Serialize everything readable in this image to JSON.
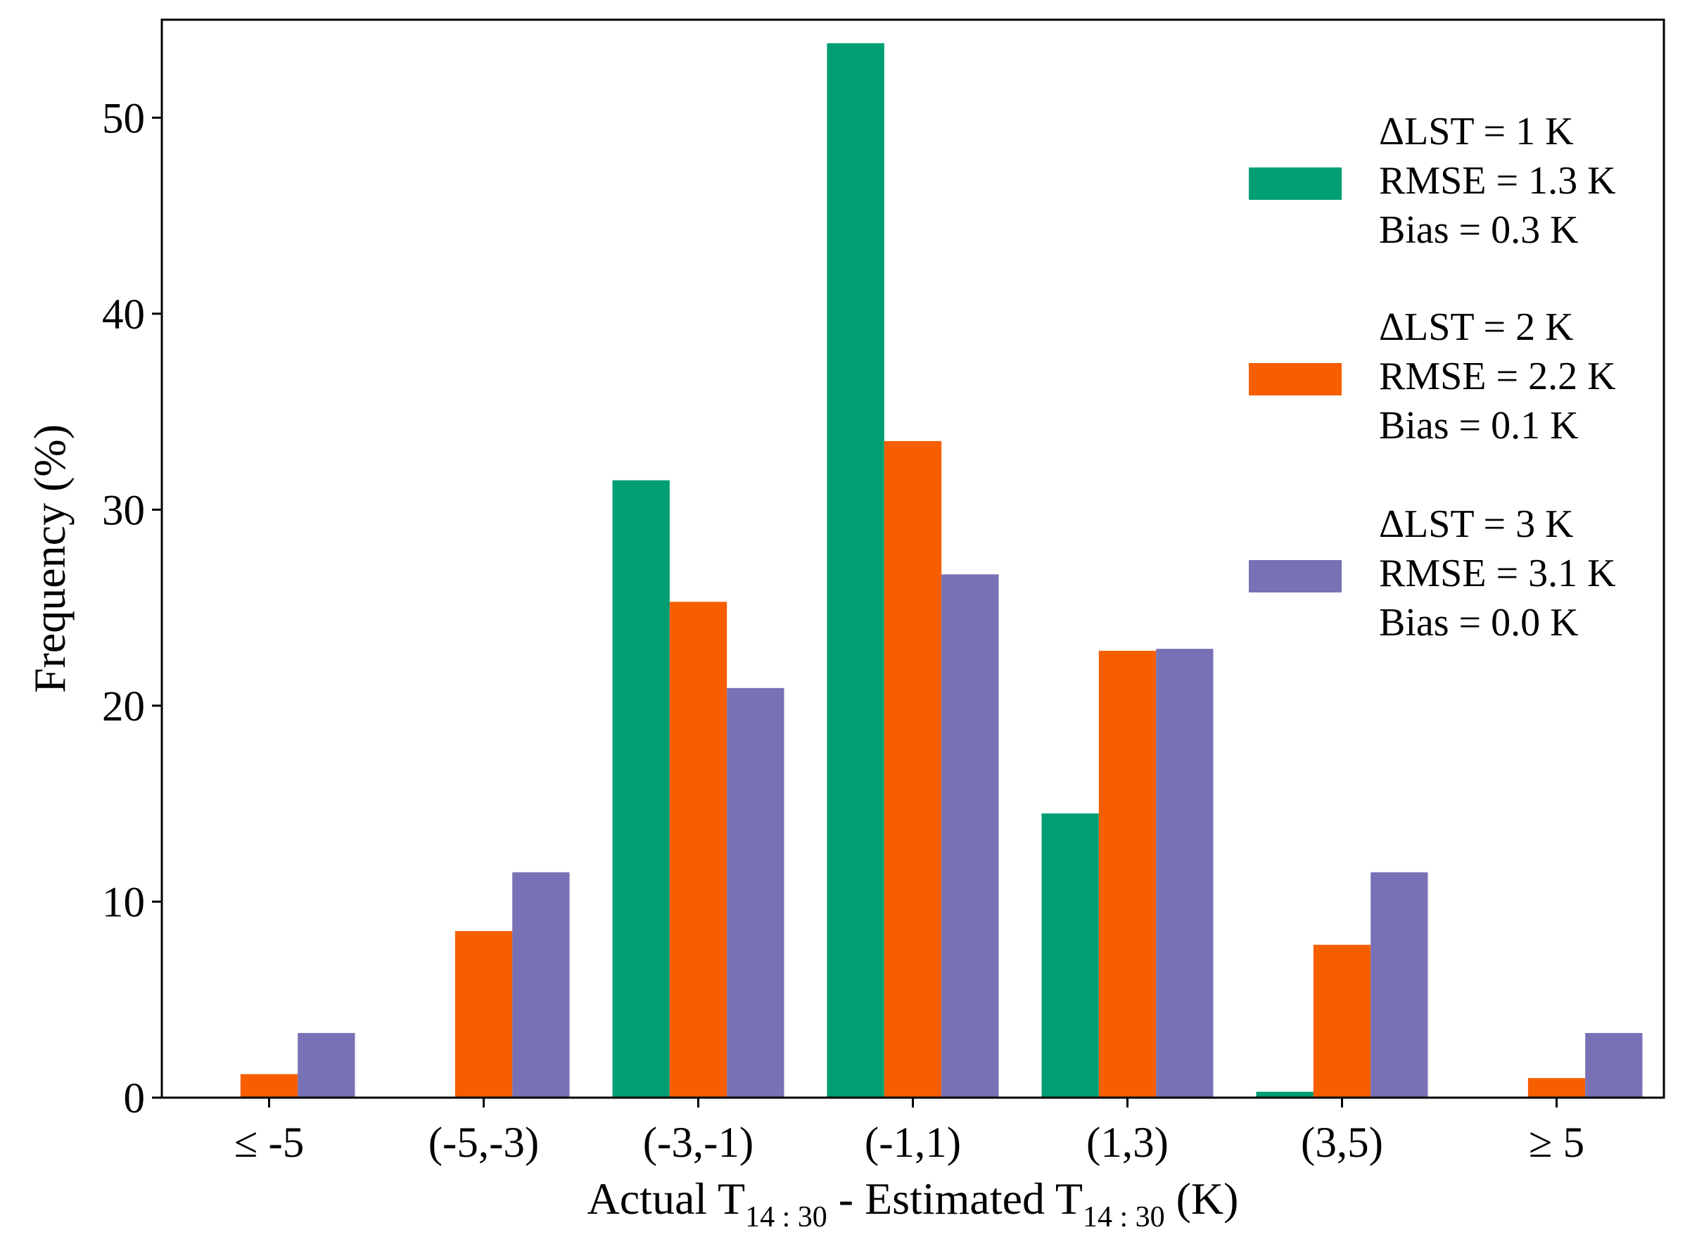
{
  "chart_data": {
    "type": "bar",
    "title": "",
    "categories": [
      "≤ -5",
      "(-5,-3)",
      "(-3,-1)",
      "(-1,1)",
      "(1,3)",
      "(3,5)",
      "≥ 5"
    ],
    "series": [
      {
        "name": "ΔLST = 1 K",
        "color": "#009e73",
        "legend_lines": [
          "ΔLST = 1 K",
          "RMSE = 1.3 K",
          "Bias = 0.3 K"
        ],
        "values": [
          0,
          0,
          31.5,
          53.8,
          14.5,
          0.3,
          0
        ]
      },
      {
        "name": "ΔLST = 2 K",
        "color": "#f75e00",
        "legend_lines": [
          "ΔLST = 2 K",
          "RMSE = 2.2 K",
          "Bias = 0.1 K"
        ],
        "values": [
          1.2,
          8.5,
          25.3,
          33.5,
          22.8,
          7.8,
          1.0
        ]
      },
      {
        "name": "ΔLST = 3 K",
        "color": "#7971b5",
        "legend_lines": [
          "ΔLST = 3 K",
          "RMSE = 3.1 K",
          "Bias = 0.0 K"
        ],
        "values": [
          3.3,
          11.5,
          20.9,
          26.7,
          22.9,
          11.5,
          3.3
        ]
      }
    ],
    "xlabel": {
      "p1": "Actual T",
      "s1": "14 : 30",
      "p2": " - Estimated T",
      "s2": "14 : 30",
      "p3": " (K)"
    },
    "ylabel": "Frequency (%)",
    "ylim": [
      0,
      55
    ],
    "yticks": [
      0,
      10,
      20,
      30,
      40,
      50
    ],
    "legend_position": "top-right",
    "grid": false
  }
}
